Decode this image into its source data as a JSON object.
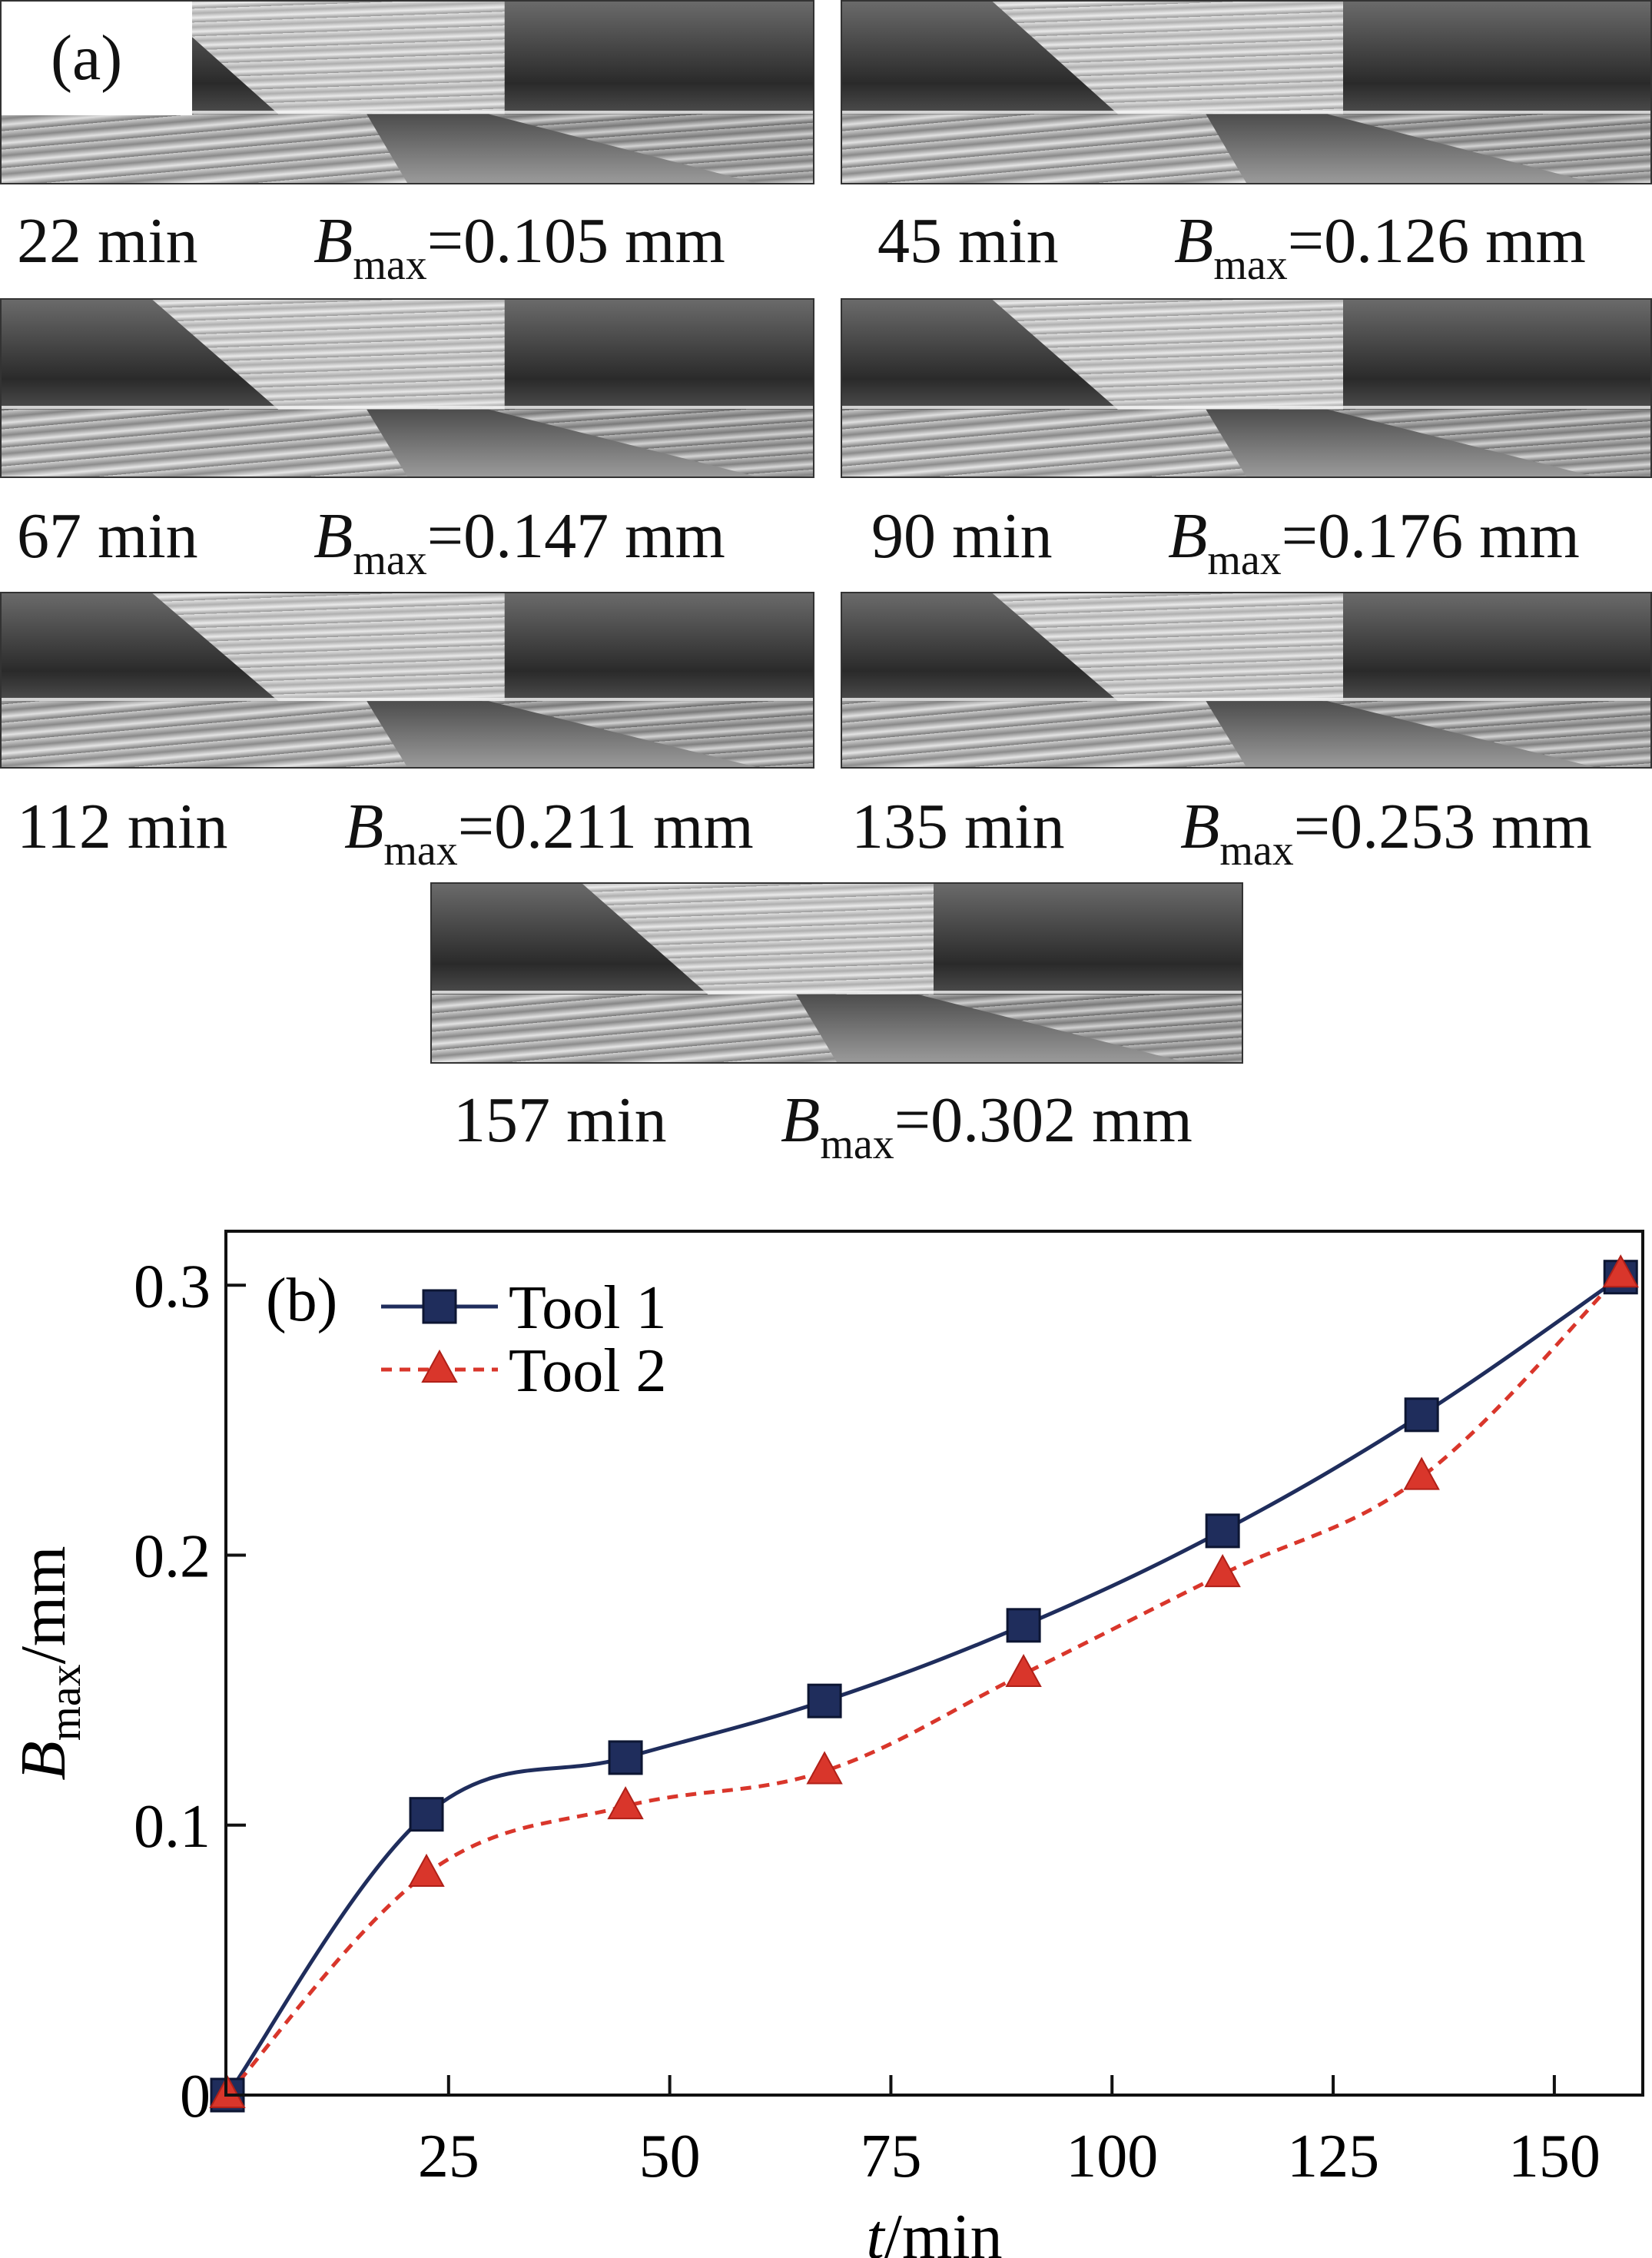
{
  "panel_a": {
    "label": "(a)",
    "images": [
      {
        "time": "22 min",
        "b": "B",
        "sub": "max",
        "value": "=0.105 mm"
      },
      {
        "time": "45 min",
        "b": "B",
        "sub": "max",
        "value": "=0.126 mm"
      },
      {
        "time": "67 min",
        "b": "B",
        "sub": "max",
        "value": "=0.147 mm"
      },
      {
        "time": "90 min",
        "b": "B",
        "sub": "max",
        "value": "=0.176 mm"
      },
      {
        "time": "112 min",
        "b": "B",
        "sub": "max",
        "value": "=0.211 mm"
      },
      {
        "time": "135 min",
        "b": "B",
        "sub": "max",
        "value": "=0.253 mm"
      },
      {
        "time": "157 min",
        "b": "B",
        "sub": "max",
        "value": "=0.302 mm"
      }
    ]
  },
  "chart_data": {
    "type": "line",
    "panel_label": "(b)",
    "title": "",
    "xlabel": {
      "italic": "t",
      "rest": "/min"
    },
    "ylabel": {
      "italic": "B",
      "sub": "max",
      "rest": "/mm"
    },
    "xlim": [
      0,
      160
    ],
    "ylim": [
      0,
      0.32
    ],
    "xticks": [
      25,
      50,
      75,
      100,
      125,
      150
    ],
    "xtick_labels": [
      "25",
      "50",
      "75",
      "100",
      "125",
      "150"
    ],
    "yticks": [
      0,
      0.1,
      0.2,
      0.3
    ],
    "ytick_labels": [
      "0",
      "0.1",
      "0.2",
      "0.3"
    ],
    "legend_position": "top-left",
    "series": [
      {
        "name": "Tool 1",
        "color": "#1f2d5c",
        "marker": "square",
        "dash": "solid",
        "x": [
          0,
          22.5,
          45,
          67.5,
          90,
          112.5,
          135,
          157.5
        ],
        "y": [
          0,
          0.104,
          0.125,
          0.146,
          0.174,
          0.209,
          0.252,
          0.303
        ]
      },
      {
        "name": "Tool 2",
        "color": "#d9362b",
        "marker": "triangle",
        "dash": "dashed",
        "x": [
          0,
          22.5,
          45,
          67.5,
          90,
          112.5,
          135,
          157.5
        ],
        "y": [
          0,
          0.082,
          0.107,
          0.12,
          0.156,
          0.193,
          0.229,
          0.304
        ]
      }
    ]
  }
}
